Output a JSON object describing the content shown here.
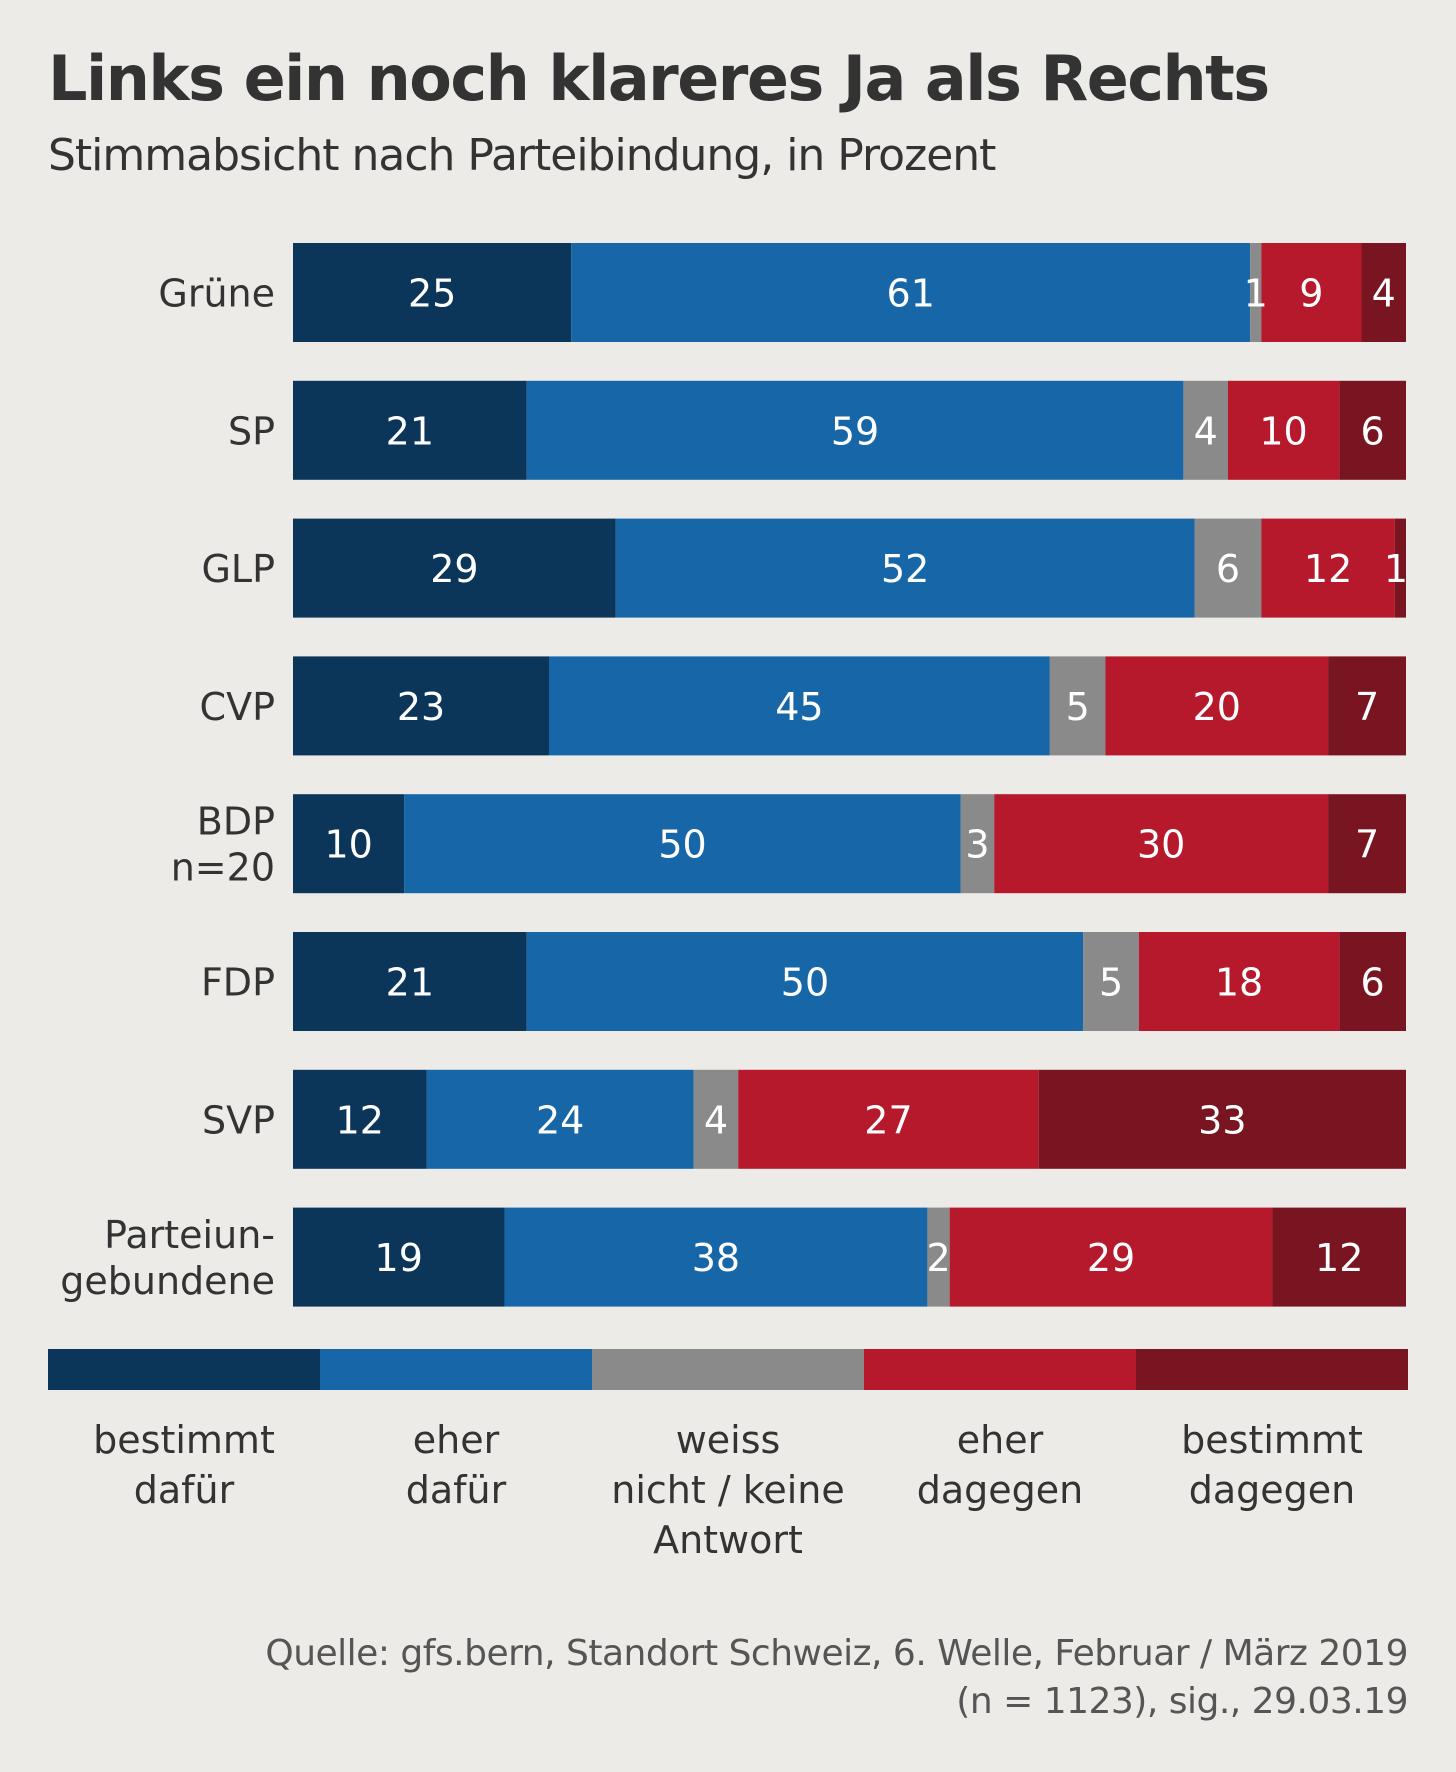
{
  "title": "Links ein noch klareres Ja als Rechts",
  "subtitle": "Stimmabsicht nach Parteibindung, in Prozent",
  "source": {
    "line1": "Quelle: gfs.bern, Standort Schweiz, 6. Welle, Februar / März 2019",
    "line2": "(n = 1123), sig., 29.03.19"
  },
  "chart_data": {
    "type": "bar",
    "orientation": "horizontal",
    "stacked": true,
    "unit": "Prozent",
    "categories": [
      [
        "Grüne"
      ],
      [
        "SP"
      ],
      [
        "GLP"
      ],
      [
        "CVP"
      ],
      [
        "BDP",
        "n=20"
      ],
      [
        "FDP"
      ],
      [
        "SVP"
      ],
      [
        "Parteiun-",
        "gebundene"
      ]
    ],
    "series": [
      {
        "name": "bestimmt dafür",
        "name_lines": [
          "bestimmt",
          "dafür"
        ],
        "color": "#0b3559",
        "values": [
          25,
          21,
          29,
          23,
          10,
          21,
          12,
          19
        ]
      },
      {
        "name": "eher dafür",
        "name_lines": [
          "eher",
          "dafür"
        ],
        "color": "#1767a8",
        "values": [
          61,
          59,
          52,
          45,
          50,
          50,
          24,
          38
        ]
      },
      {
        "name": "weiss nicht / keine Antwort",
        "name_lines": [
          "weiss",
          "nicht / keine",
          "Antwort"
        ],
        "color": "#8b8a8a",
        "values": [
          1,
          4,
          6,
          5,
          3,
          5,
          4,
          2
        ]
      },
      {
        "name": "eher dagegen",
        "name_lines": [
          "eher",
          "dagegen"
        ],
        "color": "#b5192b",
        "values": [
          9,
          10,
          12,
          20,
          30,
          18,
          27,
          29
        ]
      },
      {
        "name": "bestimmt dagegen",
        "name_lines": [
          "bestimmt",
          "dagegen"
        ],
        "color": "#791520",
        "values": [
          4,
          6,
          1,
          7,
          7,
          6,
          33,
          12
        ]
      }
    ],
    "xlim": [
      0,
      100
    ],
    "grid": false,
    "legend": "bottom"
  }
}
